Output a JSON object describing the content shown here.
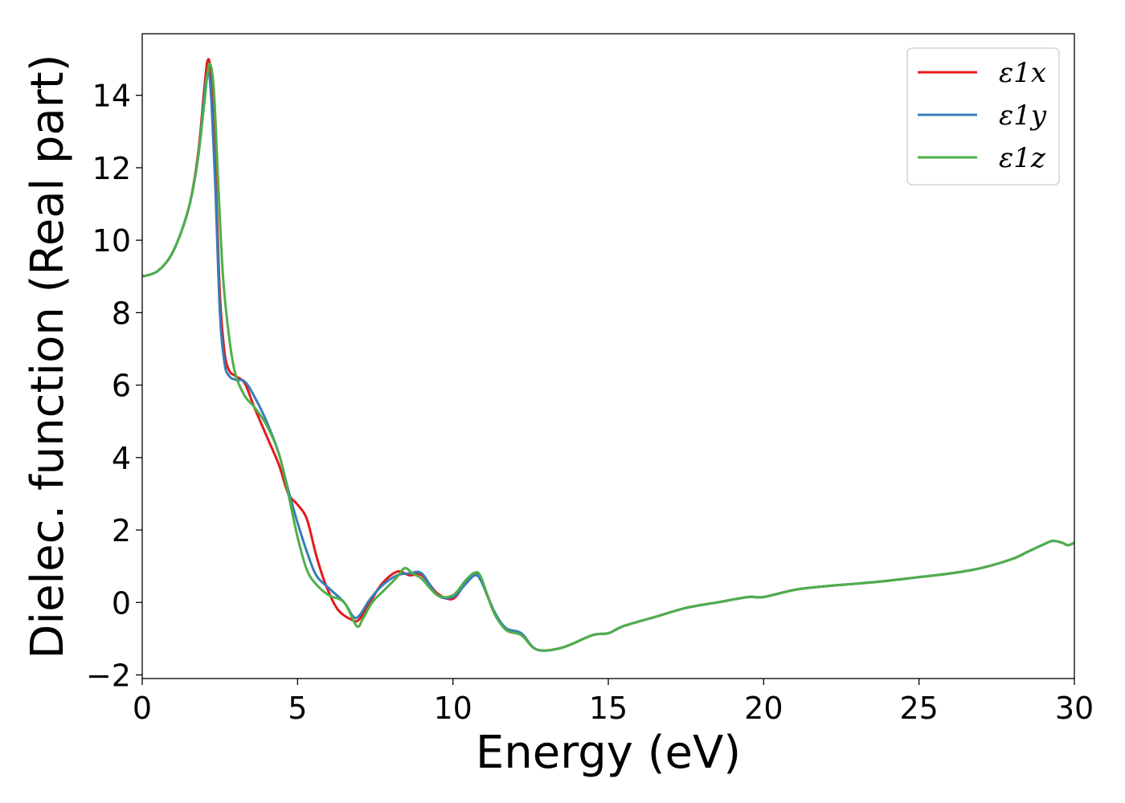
{
  "chart_data": {
    "type": "line",
    "title": "",
    "xlabel": "Energy (eV)",
    "ylabel": "Dielec. function (Real part)",
    "xlim": [
      0,
      30
    ],
    "ylim": [
      -2.1,
      15.7
    ],
    "xticks": [
      0,
      5,
      10,
      15,
      20,
      25,
      30
    ],
    "yticks": [
      -2,
      0,
      2,
      4,
      6,
      8,
      10,
      12,
      14
    ],
    "xtick_labels": [
      "0",
      "5",
      "10",
      "15",
      "20",
      "25",
      "30"
    ],
    "ytick_labels": [
      "−2",
      "0",
      "2",
      "4",
      "6",
      "8",
      "10",
      "12",
      "14"
    ],
    "grid": false,
    "legend_position": "top-right",
    "series": [
      {
        "name": "ε1x",
        "color": "#e41a1c",
        "points": [
          [
            0,
            9.0
          ],
          [
            0.5,
            9.15
          ],
          [
            1.0,
            9.7
          ],
          [
            1.5,
            10.9
          ],
          [
            1.8,
            12.4
          ],
          [
            2.0,
            14.2
          ],
          [
            2.1,
            14.95
          ],
          [
            2.2,
            14.6
          ],
          [
            2.35,
            12.0
          ],
          [
            2.5,
            8.5
          ],
          [
            2.65,
            6.9
          ],
          [
            2.8,
            6.4
          ],
          [
            3.0,
            6.25
          ],
          [
            3.3,
            6.05
          ],
          [
            3.6,
            5.4
          ],
          [
            4.0,
            4.6
          ],
          [
            4.4,
            3.8
          ],
          [
            4.7,
            3.0
          ],
          [
            5.0,
            2.7
          ],
          [
            5.3,
            2.3
          ],
          [
            5.6,
            1.3
          ],
          [
            5.9,
            0.5
          ],
          [
            6.3,
            -0.2
          ],
          [
            6.8,
            -0.5
          ],
          [
            7.0,
            -0.45
          ],
          [
            7.3,
            -0.05
          ],
          [
            7.7,
            0.5
          ],
          [
            8.2,
            0.85
          ],
          [
            8.6,
            0.75
          ],
          [
            9.0,
            0.75
          ],
          [
            9.5,
            0.25
          ],
          [
            10.0,
            0.1
          ],
          [
            10.4,
            0.55
          ],
          [
            10.7,
            0.75
          ],
          [
            10.9,
            0.65
          ],
          [
            11.3,
            -0.2
          ],
          [
            11.7,
            -0.75
          ],
          [
            12.2,
            -0.9
          ],
          [
            12.7,
            -1.3
          ],
          [
            13.5,
            -1.25
          ],
          [
            14.5,
            -0.9
          ],
          [
            15.0,
            -0.85
          ],
          [
            15.5,
            -0.65
          ],
          [
            16.5,
            -0.4
          ],
          [
            17.5,
            -0.15
          ],
          [
            18.5,
            0.0
          ],
          [
            19.5,
            0.15
          ],
          [
            20.0,
            0.15
          ],
          [
            21.0,
            0.35
          ],
          [
            22.0,
            0.45
          ],
          [
            23.0,
            0.52
          ],
          [
            24.0,
            0.6
          ],
          [
            25.0,
            0.7
          ],
          [
            26.0,
            0.8
          ],
          [
            27.0,
            0.95
          ],
          [
            28.0,
            1.2
          ],
          [
            28.5,
            1.4
          ],
          [
            29.0,
            1.6
          ],
          [
            29.3,
            1.7
          ],
          [
            29.6,
            1.65
          ],
          [
            29.8,
            1.58
          ],
          [
            30.0,
            1.65
          ]
        ]
      },
      {
        "name": "ε1y",
        "color": "#377eb8",
        "points": [
          [
            0,
            9.0
          ],
          [
            0.5,
            9.15
          ],
          [
            1.0,
            9.7
          ],
          [
            1.5,
            10.9
          ],
          [
            1.8,
            12.3
          ],
          [
            2.0,
            14.0
          ],
          [
            2.1,
            14.6
          ],
          [
            2.2,
            14.2
          ],
          [
            2.35,
            11.5
          ],
          [
            2.5,
            8.0
          ],
          [
            2.65,
            6.6
          ],
          [
            2.8,
            6.25
          ],
          [
            3.0,
            6.15
          ],
          [
            3.3,
            6.1
          ],
          [
            3.6,
            5.7
          ],
          [
            4.0,
            5.0
          ],
          [
            4.4,
            4.1
          ],
          [
            4.7,
            3.1
          ],
          [
            5.0,
            2.2
          ],
          [
            5.3,
            1.4
          ],
          [
            5.6,
            0.75
          ],
          [
            6.0,
            0.4
          ],
          [
            6.5,
            0.0
          ],
          [
            6.8,
            -0.4
          ],
          [
            7.0,
            -0.35
          ],
          [
            7.3,
            0.05
          ],
          [
            7.7,
            0.45
          ],
          [
            8.2,
            0.75
          ],
          [
            8.6,
            0.8
          ],
          [
            9.0,
            0.8
          ],
          [
            9.5,
            0.2
          ],
          [
            10.0,
            0.15
          ],
          [
            10.4,
            0.5
          ],
          [
            10.7,
            0.75
          ],
          [
            10.9,
            0.6
          ],
          [
            11.3,
            -0.2
          ],
          [
            11.7,
            -0.7
          ],
          [
            12.2,
            -0.85
          ],
          [
            12.7,
            -1.3
          ],
          [
            13.5,
            -1.25
          ],
          [
            14.5,
            -0.9
          ],
          [
            15.0,
            -0.85
          ],
          [
            15.5,
            -0.65
          ],
          [
            16.5,
            -0.4
          ],
          [
            17.5,
            -0.15
          ],
          [
            18.5,
            0.0
          ],
          [
            19.5,
            0.15
          ],
          [
            20.0,
            0.15
          ],
          [
            21.0,
            0.35
          ],
          [
            22.0,
            0.45
          ],
          [
            23.0,
            0.52
          ],
          [
            24.0,
            0.6
          ],
          [
            25.0,
            0.7
          ],
          [
            26.0,
            0.8
          ],
          [
            27.0,
            0.95
          ],
          [
            28.0,
            1.2
          ],
          [
            28.5,
            1.4
          ],
          [
            29.0,
            1.6
          ],
          [
            29.3,
            1.7
          ],
          [
            29.6,
            1.65
          ],
          [
            29.8,
            1.58
          ],
          [
            30.0,
            1.65
          ]
        ]
      },
      {
        "name": "ε1z",
        "color": "#4daf4a",
        "points": [
          [
            0,
            9.0
          ],
          [
            0.5,
            9.15
          ],
          [
            1.0,
            9.7
          ],
          [
            1.5,
            10.9
          ],
          [
            1.8,
            12.3
          ],
          [
            2.0,
            13.8
          ],
          [
            2.15,
            14.85
          ],
          [
            2.3,
            14.2
          ],
          [
            2.45,
            11.5
          ],
          [
            2.6,
            9.0
          ],
          [
            2.8,
            7.3
          ],
          [
            3.0,
            6.3
          ],
          [
            3.3,
            5.7
          ],
          [
            3.6,
            5.4
          ],
          [
            4.0,
            4.9
          ],
          [
            4.4,
            4.1
          ],
          [
            4.7,
            3.0
          ],
          [
            5.0,
            1.8
          ],
          [
            5.3,
            0.9
          ],
          [
            5.6,
            0.5
          ],
          [
            6.0,
            0.2
          ],
          [
            6.5,
            0.0
          ],
          [
            6.9,
            -0.65
          ],
          [
            7.1,
            -0.45
          ],
          [
            7.4,
            0.0
          ],
          [
            7.8,
            0.35
          ],
          [
            8.2,
            0.7
          ],
          [
            8.45,
            0.95
          ],
          [
            8.7,
            0.8
          ],
          [
            9.0,
            0.65
          ],
          [
            9.5,
            0.2
          ],
          [
            10.0,
            0.2
          ],
          [
            10.4,
            0.6
          ],
          [
            10.7,
            0.82
          ],
          [
            10.9,
            0.7
          ],
          [
            11.3,
            -0.25
          ],
          [
            11.7,
            -0.75
          ],
          [
            12.2,
            -0.9
          ],
          [
            12.7,
            -1.3
          ],
          [
            13.5,
            -1.25
          ],
          [
            14.5,
            -0.9
          ],
          [
            15.0,
            -0.85
          ],
          [
            15.5,
            -0.65
          ],
          [
            16.5,
            -0.4
          ],
          [
            17.5,
            -0.15
          ],
          [
            18.5,
            0.0
          ],
          [
            19.5,
            0.15
          ],
          [
            20.0,
            0.15
          ],
          [
            21.0,
            0.35
          ],
          [
            22.0,
            0.45
          ],
          [
            23.0,
            0.52
          ],
          [
            24.0,
            0.6
          ],
          [
            25.0,
            0.7
          ],
          [
            26.0,
            0.8
          ],
          [
            27.0,
            0.95
          ],
          [
            28.0,
            1.2
          ],
          [
            28.5,
            1.4
          ],
          [
            29.0,
            1.6
          ],
          [
            29.3,
            1.7
          ],
          [
            29.6,
            1.65
          ],
          [
            29.8,
            1.58
          ],
          [
            30.0,
            1.65
          ]
        ]
      }
    ]
  }
}
